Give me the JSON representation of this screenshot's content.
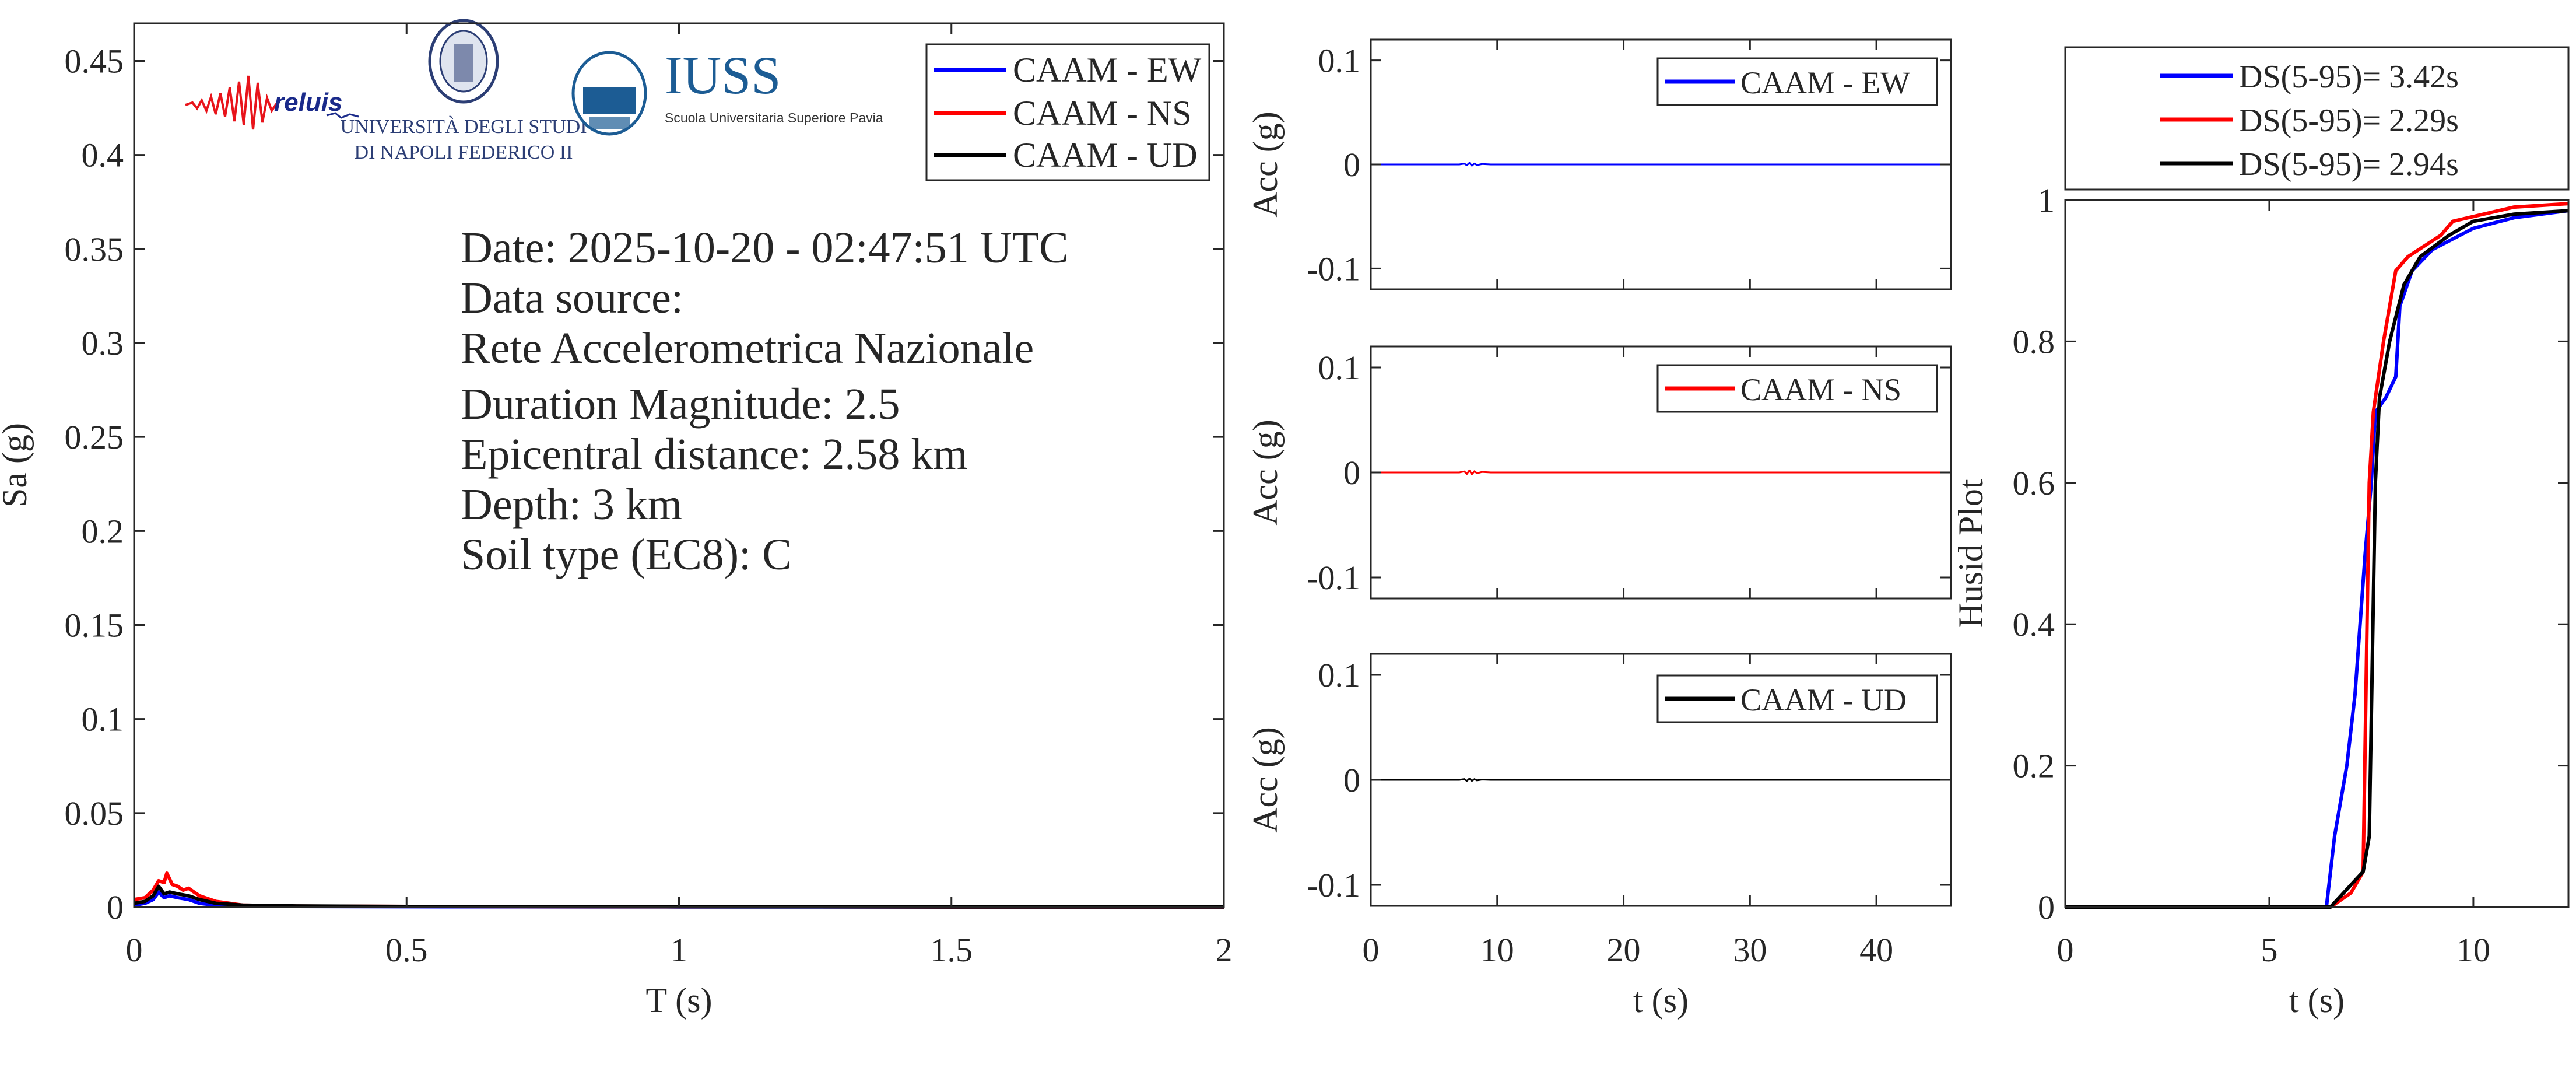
{
  "logos": {
    "reluis": "reluis",
    "unina_line1": "UNIVERSITÀ DEGLI STUDI",
    "unina_line2": "DI NAPOLI FEDERICO II",
    "iuss_title": "IUSS",
    "iuss_subtitle": "Scuola Universitaria Superiore Pavia"
  },
  "info": {
    "lines": [
      "Date: 2025-10-20 - 02:47:51 UTC",
      "Data source:",
      "Rete Accelerometrica Nazionale",
      "Duration Magnitude: 2.5",
      "Epicentral distance: 2.58 km",
      "Depth: 3 km",
      "Soil type (EC8): C"
    ]
  },
  "colors": {
    "EW": "#0000ff",
    "NS": "#ff0000",
    "UD": "#000000",
    "axis": "#262626"
  },
  "chart_data": [
    {
      "type": "line",
      "xlabel": "T (s)",
      "ylabel": "Sa (g)",
      "xlim": [
        0,
        2
      ],
      "ylim": [
        0,
        0.47
      ],
      "xticks": [
        0,
        0.5,
        1,
        1.5,
        2
      ],
      "yticks": [
        0,
        0.05,
        0.1,
        0.15,
        0.2,
        0.25,
        0.3,
        0.35,
        0.4,
        0.45
      ],
      "grid": false,
      "legend_placement": "top-right",
      "series": [
        {
          "name": "CAAM - EW",
          "color": "#0000ff",
          "x": [
            0,
            0.02,
            0.035,
            0.045,
            0.055,
            0.065,
            0.08,
            0.1,
            0.12,
            0.15,
            0.2,
            0.3,
            0.5,
            1,
            1.5,
            2
          ],
          "y": [
            0.001,
            0.002,
            0.004,
            0.008,
            0.005,
            0.006,
            0.005,
            0.004,
            0.002,
            0.001,
            0.0005,
            0.0003,
            0.0002,
            0.0001,
            0.0001,
            0.0001
          ]
        },
        {
          "name": "CAAM - NS",
          "color": "#ff0000",
          "x": [
            0,
            0.02,
            0.035,
            0.045,
            0.055,
            0.06,
            0.07,
            0.08,
            0.09,
            0.1,
            0.12,
            0.15,
            0.2,
            0.3,
            0.5,
            1,
            1.5,
            2
          ],
          "y": [
            0.004,
            0.005,
            0.009,
            0.014,
            0.013,
            0.018,
            0.012,
            0.011,
            0.009,
            0.01,
            0.006,
            0.003,
            0.001,
            0.0005,
            0.0003,
            0.0002,
            0.0001,
            0.0001
          ]
        },
        {
          "name": "CAAM - UD",
          "color": "#000000",
          "x": [
            0,
            0.02,
            0.035,
            0.045,
            0.055,
            0.065,
            0.08,
            0.1,
            0.12,
            0.15,
            0.2,
            0.3,
            0.5,
            1,
            1.5,
            2
          ],
          "y": [
            0.002,
            0.003,
            0.006,
            0.011,
            0.007,
            0.008,
            0.007,
            0.006,
            0.004,
            0.002,
            0.001,
            0.0006,
            0.0003,
            0.0002,
            0.0001,
            0.0001
          ]
        }
      ]
    },
    {
      "type": "line",
      "xlabel": "",
      "ylabel": "Acc (g)",
      "xlim": [
        0,
        45.9
      ],
      "ylim": [
        -0.12,
        0.12
      ],
      "xticks": [
        0,
        10,
        20,
        30,
        40
      ],
      "yticks": [
        -0.1,
        0,
        0.1
      ],
      "show_xticklabels": false,
      "legend_placement": "top-right",
      "series": [
        {
          "name": "CAAM - EW",
          "color": "#0000ff",
          "x": [
            0,
            7,
            7.4,
            7.6,
            7.8,
            8.0,
            8.2,
            8.4,
            8.8,
            9.5,
            45.9
          ],
          "y": [
            0,
            0,
            0.0008,
            -0.0008,
            0.0015,
            -0.0012,
            0.0009,
            -0.0006,
            0.0004,
            0,
            0
          ]
        }
      ]
    },
    {
      "type": "line",
      "xlabel": "",
      "ylabel": "Acc (g)",
      "xlim": [
        0,
        45.9
      ],
      "ylim": [
        -0.12,
        0.12
      ],
      "xticks": [
        0,
        10,
        20,
        30,
        40
      ],
      "yticks": [
        -0.1,
        0,
        0.1
      ],
      "show_xticklabels": false,
      "legend_placement": "top-right",
      "series": [
        {
          "name": "CAAM - NS",
          "color": "#ff0000",
          "x": [
            0,
            7,
            7.4,
            7.6,
            7.8,
            8.0,
            8.2,
            8.4,
            8.8,
            9.5,
            45.9
          ],
          "y": [
            0,
            0,
            0.001,
            -0.0015,
            0.002,
            -0.0018,
            0.0012,
            -0.0008,
            0.0005,
            0,
            0
          ]
        }
      ]
    },
    {
      "type": "line",
      "xlabel": "t (s)",
      "ylabel": "Acc (g)",
      "xlim": [
        0,
        45.9
      ],
      "ylim": [
        -0.12,
        0.12
      ],
      "xticks": [
        0,
        10,
        20,
        30,
        40
      ],
      "yticks": [
        -0.1,
        0,
        0.1
      ],
      "show_xticklabels": true,
      "legend_placement": "top-right",
      "series": [
        {
          "name": "CAAM - UD",
          "color": "#000000",
          "x": [
            0,
            7,
            7.4,
            7.6,
            7.8,
            8.0,
            8.2,
            8.4,
            8.8,
            9.5,
            45.9
          ],
          "y": [
            0,
            0,
            0.0008,
            -0.001,
            0.0012,
            -0.001,
            0.0007,
            -0.0005,
            0.0003,
            0,
            0
          ]
        }
      ]
    },
    {
      "type": "line",
      "xlabel": "t (s)",
      "ylabel": "Husid Plot",
      "xlim": [
        0,
        12.33
      ],
      "ylim": [
        0,
        1
      ],
      "xticks": [
        0,
        5,
        10
      ],
      "yticks": [
        0,
        0.2,
        0.4,
        0.6,
        0.8,
        1
      ],
      "legend_placement": "top-outside",
      "series": [
        {
          "name": "DS(5-95)= 3.42s",
          "color": "#0000ff",
          "x": [
            0,
            6.4,
            6.6,
            6.9,
            7.1,
            7.35,
            7.5,
            7.6,
            7.85,
            8.1,
            8.2,
            8.5,
            9.0,
            10.0,
            11.0,
            12.33
          ],
          "y": [
            0,
            0,
            0.1,
            0.2,
            0.3,
            0.5,
            0.6,
            0.7,
            0.72,
            0.75,
            0.85,
            0.9,
            0.93,
            0.96,
            0.975,
            0.985
          ]
        },
        {
          "name": "DS(5-95)= 2.29s",
          "color": "#ff0000",
          "x": [
            0,
            6.5,
            7.0,
            7.3,
            7.45,
            7.55,
            7.8,
            7.95,
            8.1,
            8.4,
            9.2,
            9.5,
            11.0,
            12.33
          ],
          "y": [
            0,
            0,
            0.02,
            0.05,
            0.6,
            0.7,
            0.8,
            0.85,
            0.9,
            0.92,
            0.95,
            0.97,
            0.99,
            0.995
          ]
        },
        {
          "name": "DS(5-95)= 2.94s",
          "color": "#000000",
          "x": [
            0,
            6.5,
            7.3,
            7.45,
            7.6,
            7.7,
            7.95,
            8.3,
            8.7,
            9.4,
            10.0,
            11.0,
            12.33
          ],
          "y": [
            0,
            0,
            0.05,
            0.1,
            0.6,
            0.72,
            0.8,
            0.88,
            0.92,
            0.95,
            0.97,
            0.98,
            0.985
          ]
        }
      ]
    }
  ]
}
